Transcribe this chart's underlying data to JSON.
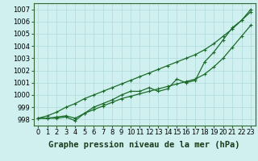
{
  "xlabel": "Graphe pression niveau de la mer (hPa)",
  "x": [
    0,
    1,
    2,
    3,
    4,
    5,
    6,
    7,
    8,
    9,
    10,
    11,
    12,
    13,
    14,
    15,
    16,
    17,
    18,
    19,
    20,
    21,
    22,
    23
  ],
  "y_actual": [
    998.1,
    998.1,
    998.1,
    998.2,
    997.9,
    998.5,
    999.0,
    999.3,
    999.6,
    1000.0,
    1000.3,
    1000.3,
    1000.6,
    1000.3,
    1000.5,
    1001.3,
    1001.0,
    1001.2,
    1002.7,
    1003.5,
    1004.5,
    1005.5,
    1006.1,
    1007.0
  ],
  "y_smooth_upper": [
    998.1,
    998.3,
    998.6,
    999.0,
    999.3,
    999.7,
    1000.0,
    1000.3,
    1000.6,
    1000.9,
    1001.2,
    1001.5,
    1001.8,
    1002.1,
    1002.4,
    1002.7,
    1003.0,
    1003.3,
    1003.7,
    1004.2,
    1004.8,
    1005.4,
    1006.1,
    1006.8
  ],
  "y_smooth_lower": [
    998.1,
    998.1,
    998.2,
    998.3,
    998.1,
    998.5,
    998.8,
    999.1,
    999.4,
    999.7,
    999.9,
    1000.1,
    1000.3,
    1000.5,
    1000.7,
    1000.9,
    1001.1,
    1001.3,
    1001.7,
    1002.3,
    1003.0,
    1003.9,
    1004.8,
    1005.7
  ],
  "ylim": [
    997.5,
    1007.5
  ],
  "xlim": [
    -0.5,
    23.5
  ],
  "yticks": [
    998,
    999,
    1000,
    1001,
    1002,
    1003,
    1004,
    1005,
    1006,
    1007
  ],
  "bg_color": "#cff0ee",
  "grid_color": "#b0dada",
  "line_color": "#1a6b2a",
  "marker": "+",
  "markersize": 3.5,
  "linewidth": 0.9,
  "xlabel_fontsize": 7.5,
  "tick_fontsize": 6
}
